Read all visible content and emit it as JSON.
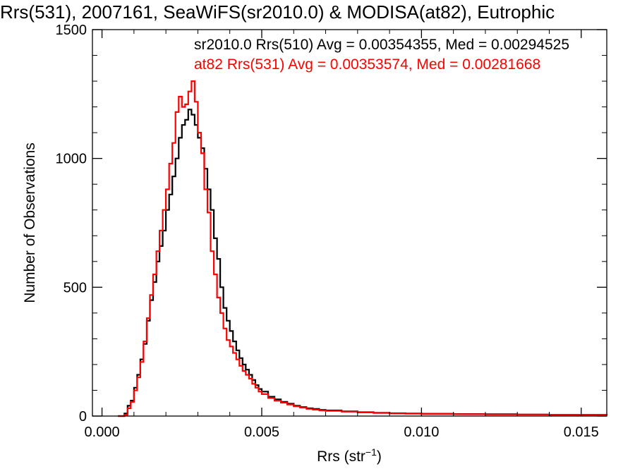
{
  "chart_data": {
    "type": "line",
    "title": "Rrs(531), 2007161, SeaWiFS(sr2010.0) & MODISA(at82), Eutrophic",
    "xlabel": "Rrs (str",
    "xlabel_sup": "−1",
    "xlabel_end": ")",
    "ylabel": "Number of Observations",
    "xlim": [
      -0.0003,
      0.0158
    ],
    "ylim": [
      0,
      1500
    ],
    "x_ticks": [
      0.0,
      0.005,
      0.01,
      0.015
    ],
    "x_tick_labels": [
      "0.000",
      "0.005",
      "0.010",
      "0.015"
    ],
    "y_ticks": [
      0,
      500,
      1000,
      1500
    ],
    "y_tick_labels": [
      "0",
      "500",
      "1000",
      "1500"
    ],
    "grid": false,
    "legend_position": "top-right",
    "series": [
      {
        "name": "sr2010.0 Rrs(510) Avg = 0.00354355, Med = 0.00294525",
        "color": "#000000",
        "points": [
          [
            0.0005,
            0
          ],
          [
            0.0007,
            10
          ],
          [
            0.0008,
            40
          ],
          [
            0.0009,
            60
          ],
          [
            0.001,
            110
          ],
          [
            0.0011,
            160
          ],
          [
            0.0012,
            220
          ],
          [
            0.0013,
            280
          ],
          [
            0.0014,
            370
          ],
          [
            0.0015,
            450
          ],
          [
            0.0016,
            520
          ],
          [
            0.0017,
            600
          ],
          [
            0.0018,
            660
          ],
          [
            0.0019,
            720
          ],
          [
            0.002,
            800
          ],
          [
            0.0021,
            860
          ],
          [
            0.0022,
            930
          ],
          [
            0.0023,
            1000
          ],
          [
            0.0024,
            1080
          ],
          [
            0.0025,
            1130
          ],
          [
            0.0026,
            1150
          ],
          [
            0.0027,
            1190
          ],
          [
            0.0028,
            1170
          ],
          [
            0.0029,
            1130
          ],
          [
            0.003,
            1080
          ],
          [
            0.0031,
            1040
          ],
          [
            0.0032,
            960
          ],
          [
            0.0033,
            880
          ],
          [
            0.0034,
            800
          ],
          [
            0.0035,
            690
          ],
          [
            0.0036,
            610
          ],
          [
            0.0037,
            500
          ],
          [
            0.0038,
            420
          ],
          [
            0.0039,
            370
          ],
          [
            0.004,
            330
          ],
          [
            0.0041,
            290
          ],
          [
            0.0042,
            255
          ],
          [
            0.0043,
            225
          ],
          [
            0.0044,
            200
          ],
          [
            0.0045,
            180
          ],
          [
            0.0046,
            160
          ],
          [
            0.0047,
            140
          ],
          [
            0.0048,
            120
          ],
          [
            0.0049,
            105
          ],
          [
            0.005,
            95
          ],
          [
            0.0052,
            75
          ],
          [
            0.0054,
            65
          ],
          [
            0.0056,
            55
          ],
          [
            0.0058,
            48
          ],
          [
            0.006,
            40
          ],
          [
            0.0062,
            35
          ],
          [
            0.0064,
            30
          ],
          [
            0.0066,
            28
          ],
          [
            0.0068,
            24
          ],
          [
            0.007,
            22
          ],
          [
            0.0075,
            18
          ],
          [
            0.008,
            15
          ],
          [
            0.0085,
            13
          ],
          [
            0.009,
            11
          ],
          [
            0.0095,
            10
          ],
          [
            0.01,
            9
          ],
          [
            0.011,
            8
          ],
          [
            0.012,
            7
          ],
          [
            0.013,
            6
          ],
          [
            0.014,
            5
          ],
          [
            0.015,
            5
          ],
          [
            0.0158,
            4
          ]
        ]
      },
      {
        "name": "at82 Rrs(531) Avg = 0.00353574, Med = 0.00281668",
        "color": "#ff0000",
        "points": [
          [
            0.0005,
            0
          ],
          [
            0.0007,
            5
          ],
          [
            0.0008,
            30
          ],
          [
            0.0009,
            55
          ],
          [
            0.001,
            100
          ],
          [
            0.0011,
            150
          ],
          [
            0.0012,
            210
          ],
          [
            0.0013,
            290
          ],
          [
            0.0014,
            380
          ],
          [
            0.0015,
            470
          ],
          [
            0.0016,
            550
          ],
          [
            0.0017,
            640
          ],
          [
            0.0018,
            720
          ],
          [
            0.0019,
            800
          ],
          [
            0.002,
            880
          ],
          [
            0.0021,
            980
          ],
          [
            0.0022,
            1060
          ],
          [
            0.0023,
            1180
          ],
          [
            0.0024,
            1240
          ],
          [
            0.0025,
            1200
          ],
          [
            0.0026,
            1210
          ],
          [
            0.0027,
            1260
          ],
          [
            0.0028,
            1300
          ],
          [
            0.0029,
            1220
          ],
          [
            0.003,
            1100
          ],
          [
            0.0031,
            1020
          ],
          [
            0.0032,
            880
          ],
          [
            0.0033,
            790
          ],
          [
            0.0034,
            640
          ],
          [
            0.0035,
            550
          ],
          [
            0.0036,
            460
          ],
          [
            0.0037,
            400
          ],
          [
            0.0038,
            340
          ],
          [
            0.0039,
            295
          ],
          [
            0.004,
            270
          ],
          [
            0.0041,
            245
          ],
          [
            0.0042,
            220
          ],
          [
            0.0043,
            195
          ],
          [
            0.0044,
            175
          ],
          [
            0.0045,
            160
          ],
          [
            0.0046,
            145
          ],
          [
            0.0047,
            125
          ],
          [
            0.0048,
            110
          ],
          [
            0.0049,
            95
          ],
          [
            0.005,
            85
          ],
          [
            0.0052,
            70
          ],
          [
            0.0054,
            60
          ],
          [
            0.0056,
            52
          ],
          [
            0.0058,
            45
          ],
          [
            0.006,
            38
          ],
          [
            0.0062,
            33
          ],
          [
            0.0064,
            28
          ],
          [
            0.0066,
            25
          ],
          [
            0.0068,
            22
          ],
          [
            0.007,
            20
          ],
          [
            0.0075,
            17
          ],
          [
            0.008,
            14
          ],
          [
            0.0085,
            12
          ],
          [
            0.009,
            10
          ],
          [
            0.0095,
            9
          ],
          [
            0.01,
            8
          ],
          [
            0.011,
            7
          ],
          [
            0.012,
            6
          ],
          [
            0.013,
            6
          ],
          [
            0.014,
            5
          ],
          [
            0.015,
            5
          ],
          [
            0.0158,
            4
          ]
        ]
      }
    ]
  }
}
